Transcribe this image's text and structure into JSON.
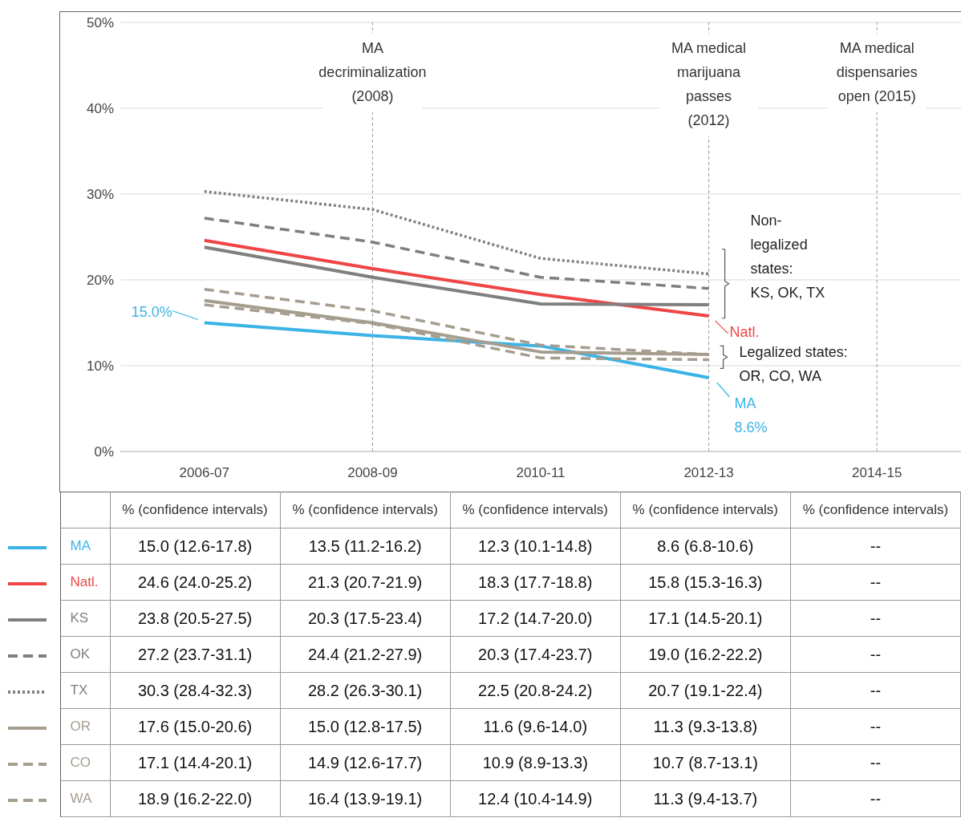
{
  "chart_data": {
    "type": "line",
    "categories": [
      "2006-07",
      "2008-09",
      "2010-11",
      "2012-13",
      "2014-15"
    ],
    "ylim": [
      0,
      50
    ],
    "yticks": [
      {
        "value": 0,
        "label": "0%"
      },
      {
        "value": 10,
        "label": "10%"
      },
      {
        "value": 20,
        "label": "20%"
      },
      {
        "value": 30,
        "label": "30%"
      },
      {
        "value": 40,
        "label": "40%"
      },
      {
        "value": 50,
        "label": "50%"
      }
    ],
    "grid": "y",
    "legend": "bottom",
    "series": [
      {
        "name": "MA",
        "color": "#3bb3e6",
        "line_style": "solid",
        "values": [
          15.0,
          13.5,
          12.3,
          8.6,
          null
        ],
        "value_labels": [
          "15.0 (12.6-17.8)",
          "13.5 (11.2-16.2)",
          "12.3 (10.1-14.8)",
          "8.6 (6.8-10.6)",
          "--"
        ]
      },
      {
        "name": "Natl.",
        "color": "#f04545",
        "line_style": "solid",
        "values": [
          24.6,
          21.3,
          18.3,
          15.8,
          null
        ],
        "value_labels": [
          "24.6 (24.0-25.2)",
          "21.3 (20.7-21.9)",
          "18.3 (17.7-18.8)",
          "15.8 (15.3-16.3)",
          "--"
        ]
      },
      {
        "name": "KS",
        "color": "#7f7f7f",
        "line_style": "solid",
        "values": [
          23.8,
          20.3,
          17.2,
          17.1,
          null
        ],
        "value_labels": [
          "23.8 (20.5-27.5)",
          "20.3 (17.5-23.4)",
          "17.2 (14.7-20.0)",
          "17.1 (14.5-20.1)",
          "--"
        ]
      },
      {
        "name": "OK",
        "color": "#7f7f7f",
        "line_style": "dashed",
        "values": [
          27.2,
          24.4,
          20.3,
          19.0,
          null
        ],
        "value_labels": [
          "27.2 (23.7-31.1)",
          "24.4 (21.2-27.9)",
          "20.3 (17.4-23.7)",
          "19.0 (16.2-22.2)",
          "--"
        ]
      },
      {
        "name": "TX",
        "color": "#7f7f7f",
        "line_style": "dotted",
        "values": [
          30.3,
          28.2,
          22.5,
          20.7,
          null
        ],
        "value_labels": [
          "30.3 (28.4-32.3)",
          "28.2 (26.3-30.1)",
          "22.5 (20.8-24.2)",
          "20.7 (19.1-22.4)",
          "--"
        ]
      },
      {
        "name": "OR",
        "color": "#a59d8e",
        "line_style": "solid",
        "values": [
          17.6,
          15.0,
          11.6,
          11.3,
          null
        ],
        "value_labels": [
          "17.6 (15.0-20.6)",
          "15.0 (12.8-17.5)",
          "11.6 (9.6-14.0)",
          "11.3 (9.3-13.8)",
          "--"
        ]
      },
      {
        "name": "CO",
        "color": "#a59d8e",
        "line_style": "dashed",
        "values": [
          17.1,
          14.9,
          10.9,
          10.7,
          null
        ],
        "value_labels": [
          "17.1 (14.4-20.1)",
          "14.9 (12.6-17.7)",
          "10.9 (8.9-13.3)",
          "10.7 (8.7-13.1)",
          "--"
        ]
      },
      {
        "name": "WA",
        "color": "#a59d8e",
        "line_style": "dashed",
        "values": [
          18.9,
          16.4,
          12.4,
          11.3,
          null
        ],
        "value_labels": [
          "18.9 (16.2-22.0)",
          "16.4 (13.9-19.1)",
          "12.4 (10.4-14.9)",
          "11.3 (9.4-13.7)",
          "--"
        ]
      }
    ],
    "ref_lines": [
      {
        "axis": "x",
        "value": "2008-09",
        "label": "MA decriminalization (2008)"
      },
      {
        "axis": "x",
        "value": "2012-13",
        "label": "MA medical marijuana passes (2012)"
      },
      {
        "axis": "x",
        "value": "2014-15",
        "label": "MA medical dispensaries open (2015)"
      }
    ],
    "annotations": [
      {
        "text": "15.0%",
        "x": "2006-07",
        "y": 15.0
      },
      {
        "text": "Natl.",
        "x": "2012-13",
        "y": 15.8
      },
      {
        "text": "MA 8.6%",
        "x": "2012-13",
        "y": 8.6
      },
      {
        "text": "Non-legalized states: KS, OK, TX",
        "x": "2012-13",
        "y": 18.9
      },
      {
        "text": "Legalized states: OR, CO, WA",
        "x": "2012-13",
        "y": 11
      },
      "% (confidence intervals)"
    ]
  }
}
